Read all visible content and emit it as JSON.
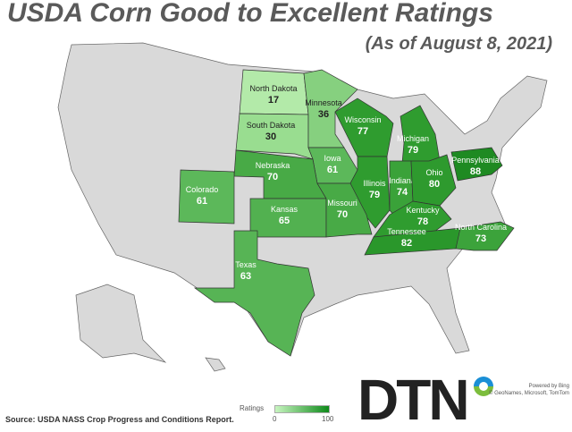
{
  "title": "USDA Corn Good to Excellent Ratings",
  "subtitle": "(As of August 8, 2021)",
  "states": [
    {
      "name": "North Dakota",
      "value": 17,
      "color": "#b3eaa9"
    },
    {
      "name": "South Dakota",
      "value": 30,
      "color": "#99dd90"
    },
    {
      "name": "Minnesota",
      "value": 36,
      "color": "#86d07f"
    },
    {
      "name": "Wisconsin",
      "value": 77,
      "color": "#2f9c2f"
    },
    {
      "name": "Michigan",
      "value": 79,
      "color": "#2f9c2f"
    },
    {
      "name": "Iowa",
      "value": 61,
      "color": "#5cb85a"
    },
    {
      "name": "Nebraska",
      "value": 70,
      "color": "#48aa46"
    },
    {
      "name": "Illinois",
      "value": 79,
      "color": "#2f9c2f"
    },
    {
      "name": "Indiana",
      "value": 74,
      "color": "#3aa239"
    },
    {
      "name": "Ohio",
      "value": 80,
      "color": "#2e9a2e"
    },
    {
      "name": "Pennsylvania",
      "value": 88,
      "color": "#1e8a22"
    },
    {
      "name": "Colorado",
      "value": 61,
      "color": "#5cb85a"
    },
    {
      "name": "Kansas",
      "value": 65,
      "color": "#52b150"
    },
    {
      "name": "Missouri",
      "value": 70,
      "color": "#48aa46"
    },
    {
      "name": "Kentucky",
      "value": 78,
      "color": "#2f9c2f"
    },
    {
      "name": "Tennessee",
      "value": 82,
      "color": "#2a972b"
    },
    {
      "name": "North Carolina",
      "value": 73,
      "color": "#3ca33b"
    },
    {
      "name": "Texas",
      "value": 63,
      "color": "#57b455"
    }
  ],
  "legend": {
    "title": "Ratings",
    "min": "0",
    "max": "100"
  },
  "source": "Source: USDA NASS Crop Progress and Conditions Report.",
  "logo": "DTN",
  "attribution": {
    "line1": "Powered by Bing",
    "line2": "© GeoNames, Microsoft,  TomTom"
  },
  "colors": {
    "no_data": "#d9d9d9",
    "border": "#333333"
  }
}
